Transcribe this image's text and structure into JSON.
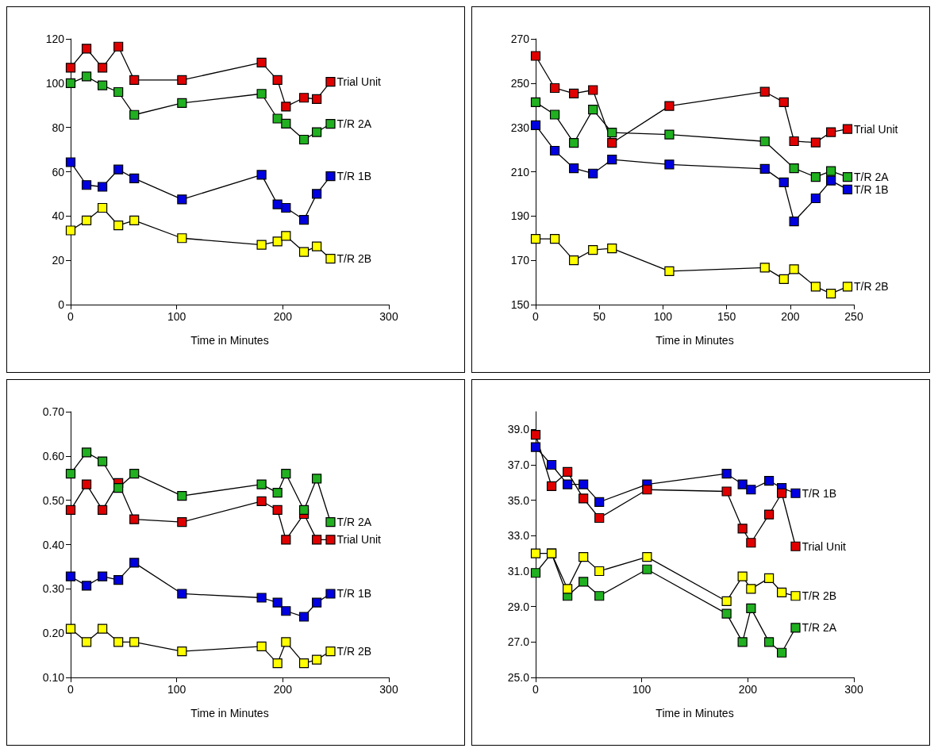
{
  "chart_data": [
    {
      "type": "line",
      "xlabel": "Time in Minutes",
      "x": [
        0,
        15,
        30,
        45,
        60,
        105,
        180,
        195,
        203,
        220,
        232,
        245
      ],
      "xlim": [
        0,
        300
      ],
      "xticks": [
        0,
        100,
        200,
        300
      ],
      "ylim": [
        0,
        120
      ],
      "yticks": [
        0,
        20,
        40,
        60,
        80,
        100,
        120
      ],
      "marker": "square",
      "line_style": "solid",
      "grid": false,
      "series": [
        {
          "name": "Trial Unit",
          "color": "#e00000",
          "values": [
            107,
            115.6,
            107,
            116.5,
            101.4,
            101.4,
            109.3,
            101.4,
            89.4,
            93.4,
            92.8,
            100.6
          ]
        },
        {
          "name": "T/R 2A",
          "color": "#20b020",
          "values": [
            100,
            103,
            99,
            96,
            85.7,
            91,
            95.2,
            84,
            81.7,
            74.5,
            77.9,
            81.6
          ]
        },
        {
          "name": "T/R 1B",
          "color": "#0000e0",
          "values": [
            64.3,
            54,
            53.2,
            61,
            57,
            47.5,
            58.6,
            45.3,
            43.7,
            38.3,
            50,
            58
          ]
        },
        {
          "name": "T/R 2B",
          "color": "#ffff00",
          "values": [
            33.5,
            38,
            43.7,
            35.8,
            38,
            30,
            27,
            28.5,
            31,
            23.8,
            26.3,
            20.7
          ]
        }
      ]
    },
    {
      "type": "line",
      "xlabel": "Time in Minutes",
      "x": [
        0,
        15,
        30,
        45,
        60,
        105,
        180,
        195,
        203,
        220,
        232,
        245
      ],
      "xlim": [
        0,
        250
      ],
      "xticks": [
        0,
        50,
        100,
        150,
        200,
        250
      ],
      "ylim": [
        150,
        270
      ],
      "yticks": [
        150,
        170,
        190,
        210,
        230,
        250,
        270
      ],
      "marker": "square",
      "line_style": "solid",
      "grid": false,
      "series": [
        {
          "name": "Trial Unit",
          "color": "#e00000",
          "values": [
            262.3,
            247.8,
            245.3,
            246.9,
            223,
            239.7,
            246.1,
            241.4,
            223.8,
            223.2,
            227.9,
            229.3
          ]
        },
        {
          "name": "T/R 2A",
          "color": "#20b020",
          "values": [
            241.4,
            235.8,
            223,
            238.1,
            227.7,
            226.8,
            223.7,
            null,
            211.6,
            207.6,
            210.3,
            207.6
          ]
        },
        {
          "name": "T/R 1B",
          "color": "#0000e0",
          "values": [
            231,
            219.5,
            211.6,
            209.2,
            215.5,
            213.3,
            211.3,
            205.2,
            187.6,
            198,
            206,
            202
          ]
        },
        {
          "name": "T/R 2B",
          "color": "#ffff00",
          "values": [
            179.7,
            179.7,
            170,
            174.7,
            175.4,
            165.1,
            166.7,
            161.5,
            166,
            158.1,
            155,
            158.1
          ]
        }
      ]
    },
    {
      "type": "line",
      "xlabel": "Time in Minutes",
      "x": [
        0,
        15,
        30,
        45,
        60,
        105,
        180,
        195,
        203,
        220,
        232,
        245
      ],
      "xlim": [
        0,
        300
      ],
      "xticks": [
        0,
        100,
        200,
        300
      ],
      "ylim": [
        0.1,
        0.7
      ],
      "yticks": [
        {
          "value": 0.1,
          "label": "0.10"
        },
        {
          "value": 0.2,
          "label": "0.20"
        },
        {
          "value": 0.3,
          "label": "0.30"
        },
        {
          "value": 0.4,
          "label": "0.40"
        },
        {
          "value": 0.5,
          "label": "0.50"
        },
        {
          "value": 0.6,
          "label": "0.60"
        },
        {
          "value": 0.7,
          "label": "0.70"
        }
      ],
      "marker": "square",
      "line_style": "solid",
      "grid": false,
      "series": [
        {
          "name": "Trial Unit",
          "color": "#e00000",
          "values": [
            0.478,
            0.536,
            0.478,
            0.539,
            0.457,
            0.451,
            0.498,
            0.478,
            0.411,
            0.469,
            0.411,
            0.411
          ]
        },
        {
          "name": "T/R 2A",
          "color": "#20b020",
          "values": [
            0.56,
            0.608,
            0.588,
            0.528,
            0.56,
            0.51,
            0.536,
            0.517,
            0.56,
            0.478,
            0.549,
            0.451
          ]
        },
        {
          "name": "T/R 1B",
          "color": "#0000e0",
          "values": [
            0.328,
            0.307,
            0.328,
            0.32,
            0.359,
            0.289,
            0.28,
            0.269,
            0.25,
            0.237,
            0.269,
            0.289
          ]
        },
        {
          "name": "T/R 2B",
          "color": "#ffff00",
          "values": [
            0.21,
            0.18,
            0.21,
            0.18,
            0.18,
            0.159,
            0.17,
            0.132,
            0.18,
            0.132,
            0.14,
            0.159
          ]
        }
      ]
    },
    {
      "type": "line",
      "xlabel": "Time in Minutes",
      "x": [
        0,
        15,
        30,
        45,
        60,
        105,
        180,
        195,
        203,
        220,
        232,
        245
      ],
      "xlim": [
        0,
        300
      ],
      "xticks": [
        0,
        100,
        200,
        300
      ],
      "ylim": [
        25,
        40
      ],
      "yticks": [
        {
          "value": 25,
          "label": "25.0"
        },
        {
          "value": 27,
          "label": "27.0"
        },
        {
          "value": 29,
          "label": "29.0"
        },
        {
          "value": 31,
          "label": "31.0"
        },
        {
          "value": 33,
          "label": "33.0"
        },
        {
          "value": 35,
          "label": "35.0"
        },
        {
          "value": 37,
          "label": "37.0"
        },
        {
          "value": 39,
          "label": "39.0"
        }
      ],
      "marker": "square",
      "line_style": "solid",
      "grid": false,
      "series": [
        {
          "name": "T/R 1B",
          "color": "#0000e0",
          "values": [
            38,
            37,
            35.9,
            35.9,
            34.9,
            35.9,
            36.5,
            35.9,
            35.6,
            36.1,
            35.7,
            35.4
          ]
        },
        {
          "name": "Trial Unit",
          "color": "#e00000",
          "values": [
            38.7,
            35.8,
            36.6,
            35.1,
            34,
            35.6,
            35.5,
            33.4,
            32.6,
            34.2,
            35.4,
            32.4
          ]
        },
        {
          "name": "T/R 2A",
          "color": "#20b020",
          "values": [
            30.9,
            32,
            29.6,
            30.4,
            29.6,
            31.1,
            28.6,
            27,
            28.9,
            27,
            26.4,
            27.8
          ]
        },
        {
          "name": "T/R 2B",
          "color": "#ffff00",
          "values": [
            32,
            32,
            30,
            31.8,
            31,
            31.8,
            29.3,
            30.7,
            30,
            30.6,
            29.8,
            29.6
          ]
        }
      ]
    }
  ]
}
